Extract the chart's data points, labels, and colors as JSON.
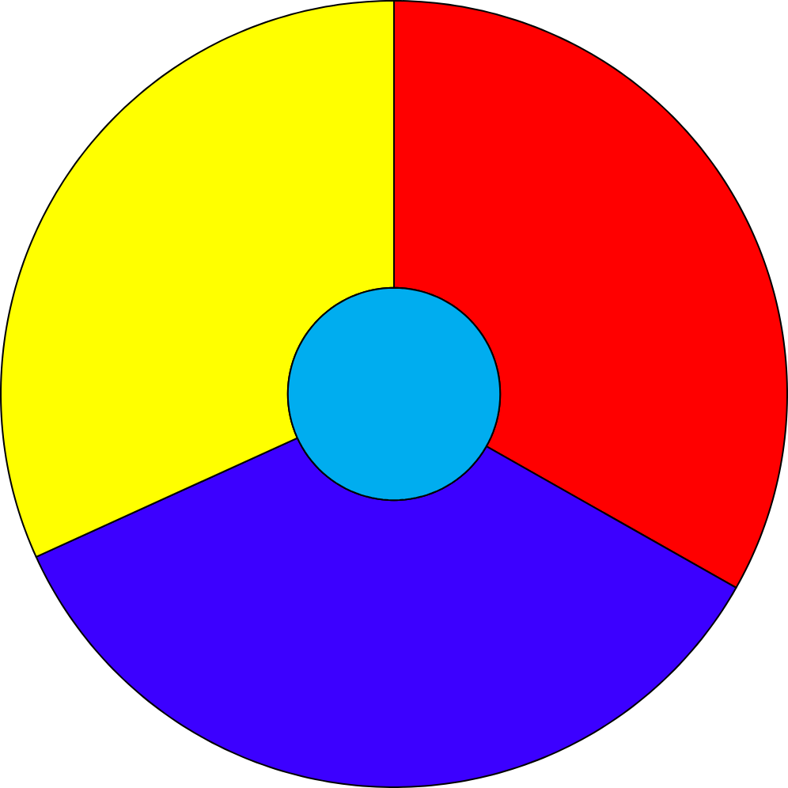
{
  "chart_data": {
    "type": "donut",
    "categories": [
      null,
      null,
      null
    ],
    "values": [
      33.2,
      35.0,
      31.8
    ],
    "colors": [
      "#ff0000",
      "#3c00ff",
      "#ffff00"
    ]
  }
}
